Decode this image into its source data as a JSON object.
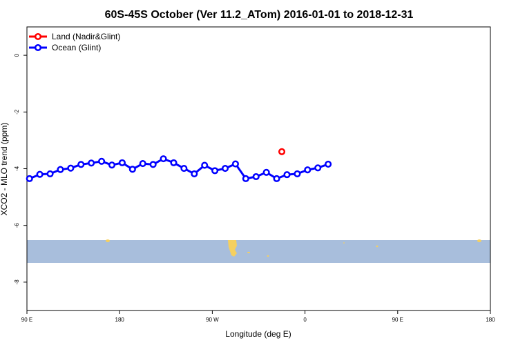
{
  "chart_data": {
    "type": "line",
    "title": "60S-45S October (Ver 11.2_ATom)   2016-01-01 to 2018-12-31",
    "xlabel": "Longitude (deg E)",
    "ylabel": "XCO2 - MLO trend (ppm)",
    "x_ticks": [
      "90 E",
      "180",
      "90 W",
      "0",
      "90 E",
      "180"
    ],
    "y_ticks": [
      "0",
      "-2",
      "-4",
      "-6",
      "-8"
    ],
    "ylim": [
      -9,
      1
    ],
    "legend": {
      "placement": "top-left"
    },
    "series": [
      {
        "name": "Land (Nadir&Glint)",
        "color": "#ff0000",
        "points": [
          [
            -72,
            -3.4
          ]
        ]
      },
      {
        "name": "Ocean (Glint)",
        "color": "#0000ff",
        "points": [
          [
            92,
            -4.35
          ],
          [
            100,
            -4.2
          ],
          [
            108,
            -4.18
          ],
          [
            116,
            -4.03
          ],
          [
            124,
            -3.98
          ],
          [
            132,
            -3.85
          ],
          [
            140,
            -3.8
          ],
          [
            148,
            -3.74
          ],
          [
            156,
            -3.87
          ],
          [
            164,
            -3.79
          ],
          [
            172,
            -4.02
          ],
          [
            180,
            -3.82
          ],
          [
            -172,
            -3.85
          ],
          [
            -164,
            -3.65
          ],
          [
            -156,
            -3.79
          ],
          [
            -148,
            -3.99
          ],
          [
            -140,
            -4.18
          ],
          [
            -132,
            -3.88
          ],
          [
            -124,
            -4.07
          ],
          [
            -116,
            -3.99
          ],
          [
            -108,
            -3.83
          ],
          [
            -100,
            -4.35
          ],
          [
            -92,
            -4.28
          ],
          [
            -84,
            -4.13
          ],
          [
            -76,
            -4.35
          ],
          [
            -68,
            -4.21
          ],
          [
            -60,
            -4.18
          ],
          [
            -52,
            -4.04
          ],
          [
            -44,
            -3.97
          ],
          [
            -36,
            -3.84
          ]
        ]
      }
    ],
    "map_band": {
      "lat_range": [
        "60S",
        "45S"
      ],
      "ocean_color": "#a8bedc",
      "land_color": "#f5d060"
    }
  }
}
